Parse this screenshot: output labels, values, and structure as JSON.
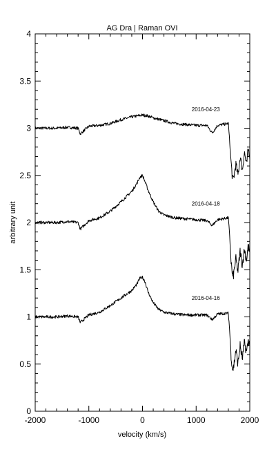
{
  "chart_data": {
    "type": "line",
    "title": "AG Dra | Raman OVI",
    "xlabel": "velocity (km/s)",
    "ylabel": "arbitrary unit",
    "xlim": [
      -2000,
      2000
    ],
    "ylim": [
      0,
      4
    ],
    "grid": false,
    "x_ticks": [
      -2000,
      -1000,
      0,
      1000,
      2000
    ],
    "x_tick_labels": [
      "-2000",
      "-1000",
      "0",
      "1000",
      "2000"
    ],
    "y_ticks": [
      0,
      0.5,
      1,
      1.5,
      2,
      2.5,
      3,
      3.5,
      4
    ],
    "y_tick_labels": [
      "0",
      "0.5",
      "1",
      "1.5",
      "2",
      "2.5",
      "3",
      "3.5",
      "4"
    ],
    "series": [
      {
        "name": "2016-04-23",
        "x": [
          -2000,
          -1800,
          -1600,
          -1400,
          -1200,
          -1160,
          -1000,
          -800,
          -600,
          -400,
          -200,
          -100,
          0,
          100,
          200,
          400,
          600,
          800,
          1000,
          1200,
          1300,
          1400,
          1600,
          1620,
          1650,
          1680,
          1700,
          1740,
          1780,
          1820,
          1860,
          1900,
          1940,
          1970,
          2000
        ],
        "values": [
          3.0,
          3.0,
          3.0,
          3.01,
          3.0,
          2.94,
          3.02,
          3.03,
          3.05,
          3.09,
          3.12,
          3.13,
          3.14,
          3.13,
          3.11,
          3.08,
          3.05,
          3.04,
          3.03,
          3.03,
          2.95,
          3.03,
          3.05,
          2.9,
          2.65,
          2.45,
          2.47,
          2.62,
          2.5,
          2.7,
          2.55,
          2.75,
          2.6,
          2.78,
          2.72
        ]
      },
      {
        "name": "2016-04-18",
        "x": [
          -2000,
          -1800,
          -1600,
          -1400,
          -1200,
          -1160,
          -1000,
          -800,
          -600,
          -400,
          -200,
          -100,
          -50,
          0,
          50,
          100,
          200,
          300,
          400,
          600,
          800,
          1000,
          1200,
          1300,
          1400,
          1600,
          1620,
          1650,
          1680,
          1700,
          1740,
          1780,
          1820,
          1860,
          1900,
          1940,
          1970,
          2000
        ],
        "values": [
          2.0,
          2.0,
          2.0,
          2.01,
          2.0,
          1.93,
          2.02,
          2.05,
          2.12,
          2.22,
          2.33,
          2.42,
          2.48,
          2.5,
          2.43,
          2.35,
          2.22,
          2.12,
          2.08,
          2.05,
          2.04,
          2.03,
          2.02,
          1.97,
          2.03,
          2.05,
          1.9,
          1.6,
          1.42,
          1.45,
          1.62,
          1.48,
          1.7,
          1.55,
          1.72,
          1.6,
          1.75,
          1.68
        ]
      },
      {
        "name": "2016-04-16",
        "x": [
          -2000,
          -1800,
          -1600,
          -1400,
          -1200,
          -1160,
          -1000,
          -800,
          -600,
          -400,
          -200,
          -100,
          -50,
          0,
          50,
          100,
          200,
          300,
          400,
          600,
          800,
          1000,
          1200,
          1300,
          1400,
          1600,
          1620,
          1650,
          1680,
          1700,
          1740,
          1780,
          1820,
          1860,
          1900,
          1940,
          1970,
          2000
        ],
        "values": [
          1.0,
          1.0,
          1.0,
          1.01,
          1.0,
          0.94,
          1.02,
          1.05,
          1.12,
          1.2,
          1.28,
          1.35,
          1.41,
          1.42,
          1.37,
          1.27,
          1.15,
          1.08,
          1.05,
          1.03,
          1.02,
          1.02,
          1.02,
          0.97,
          1.03,
          1.04,
          0.9,
          0.6,
          0.44,
          0.47,
          0.65,
          0.5,
          0.7,
          0.55,
          0.73,
          0.62,
          0.75,
          0.72
        ]
      }
    ]
  }
}
